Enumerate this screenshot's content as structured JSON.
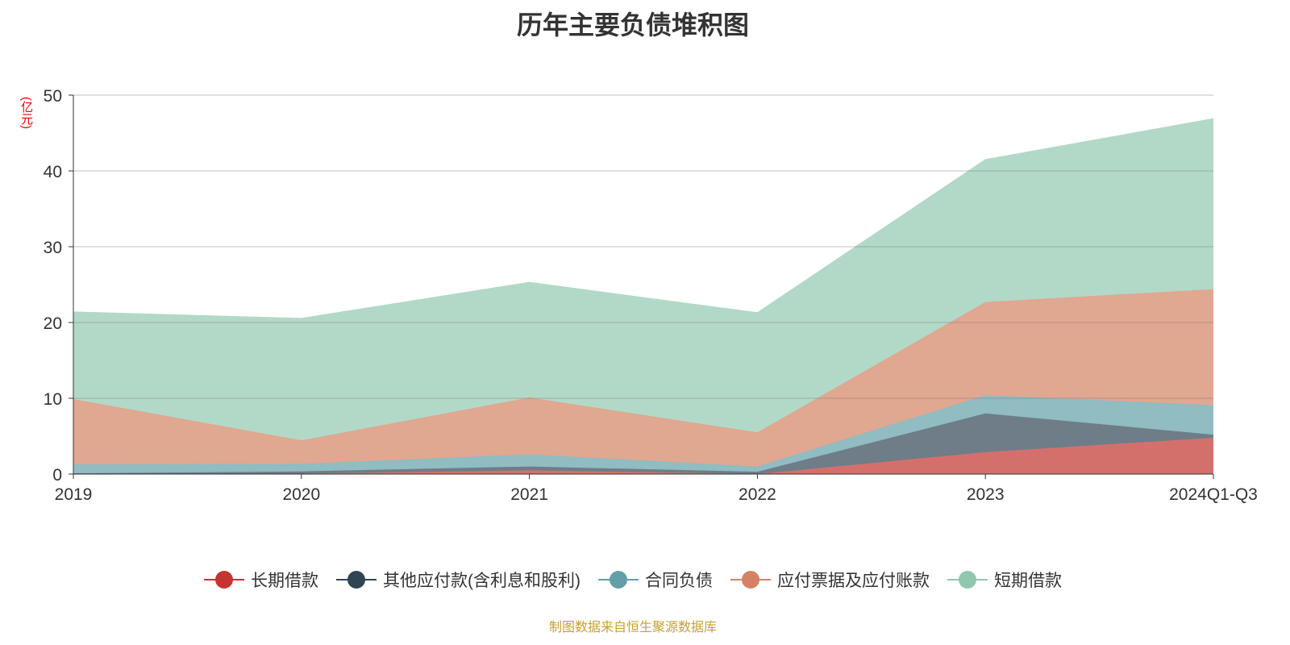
{
  "title": "历年主要负债堆积图",
  "unit": "(亿元)",
  "source": "制图数据来自恒生聚源数据库",
  "chart_data": {
    "type": "area",
    "stacked": true,
    "title": "历年主要负债堆积图",
    "ylabel": "(亿元)",
    "ylim": [
      0,
      50
    ],
    "yticks": [
      0,
      10,
      20,
      30,
      40,
      50
    ],
    "categories": [
      "2019",
      "2020",
      "2021",
      "2022",
      "2023",
      "2024Q1-Q3"
    ],
    "legend_position": "bottom",
    "series": [
      {
        "name": "长期借款",
        "color": "#c23531",
        "fill": "#d4706c",
        "values": [
          0,
          0.05,
          0.5,
          0,
          2.9,
          4.8
        ]
      },
      {
        "name": "其他应付款(含利息和股利)",
        "color": "#2f4554",
        "fill": "#6e7d88",
        "values": [
          0.1,
          0.3,
          0.5,
          0.3,
          5.1,
          0.4
        ]
      },
      {
        "name": "合同负债",
        "color": "#61a0a8",
        "fill": "#90bcc2",
        "values": [
          1.2,
          1.0,
          1.6,
          0.7,
          2.4,
          3.9
        ]
      },
      {
        "name": "应付票据及应付账款",
        "color": "#d48265",
        "fill": "#e0a791",
        "values": [
          8.6,
          3.1,
          7.5,
          4.5,
          12.3,
          15.3
        ]
      },
      {
        "name": "短期借款",
        "color": "#91c7ae",
        "fill": "#b2d9c7",
        "values": [
          11.5,
          16.1,
          15.2,
          15.8,
          18.8,
          22.5
        ]
      }
    ]
  }
}
